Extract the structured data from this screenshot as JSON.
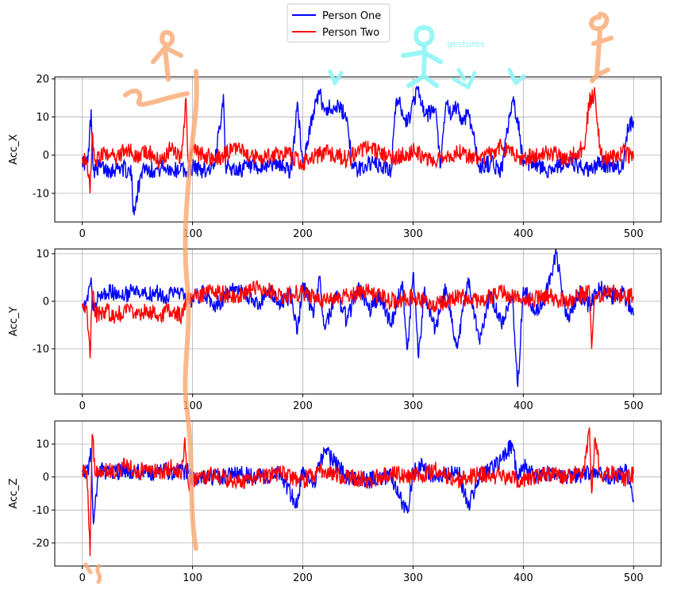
{
  "legend": {
    "placement": "top-center",
    "entries": [
      {
        "label": "Person One",
        "color": "#0000ff"
      },
      {
        "label": "Person Two",
        "color": "#ff0000"
      }
    ]
  },
  "annotation": {
    "text": "gestures",
    "color": "#8ff5f5"
  },
  "chart_data": [
    {
      "type": "line",
      "ylabel": "Acc_X",
      "xlim": [
        -25,
        525
      ],
      "ylim": [
        -17.5,
        20.5
      ],
      "xticks": [
        0,
        100,
        200,
        300,
        400,
        500
      ],
      "yticks": [
        -10,
        0,
        10,
        20
      ],
      "grid": true,
      "series": [
        {
          "name": "Person One",
          "color": "#0000ff",
          "x": [
            0,
            5,
            8,
            10,
            15,
            25,
            35,
            45,
            46,
            55,
            65,
            75,
            85,
            90,
            95,
            100,
            110,
            120,
            128,
            130,
            140,
            150,
            160,
            170,
            180,
            190,
            195,
            200,
            210,
            215,
            220,
            230,
            240,
            245,
            250,
            260,
            270,
            280,
            285,
            290,
            295,
            300,
            305,
            310,
            320,
            325,
            330,
            335,
            340,
            345,
            350,
            360,
            370,
            380,
            390,
            395,
            400,
            410,
            420,
            430,
            440,
            450,
            460,
            470,
            480,
            490,
            495,
            500
          ],
          "y": [
            -2,
            -2,
            12,
            -4,
            -3,
            -4,
            -3,
            -5,
            -15,
            -3,
            -4,
            -3,
            -4,
            -3,
            -5,
            -3,
            -4,
            -3,
            16,
            -3,
            -4,
            -3,
            -4,
            -2,
            -3,
            -4,
            14,
            -3,
            12,
            16,
            12,
            13,
            10,
            -3,
            -4,
            -2,
            -3,
            -4,
            15,
            12,
            8,
            14,
            18,
            10,
            12,
            -3,
            14,
            10,
            13,
            8,
            12,
            -3,
            -2,
            -4,
            14,
            10,
            -3,
            -2,
            -4,
            -3,
            -2,
            -3,
            -4,
            -2,
            -3,
            -3,
            7,
            9
          ]
        },
        {
          "name": "Person Two",
          "color": "#ff0000",
          "x": [
            0,
            4,
            7,
            9,
            12,
            20,
            30,
            40,
            50,
            60,
            70,
            80,
            90,
            94,
            96,
            100,
            120,
            140,
            160,
            180,
            200,
            220,
            240,
            260,
            280,
            300,
            320,
            340,
            360,
            380,
            400,
            420,
            440,
            455,
            460,
            465,
            470,
            480,
            490,
            500
          ],
          "y": [
            -0.5,
            -1,
            -10,
            6,
            -2,
            1,
            -1,
            2,
            -1,
            1,
            -2,
            2,
            -1,
            15,
            -2,
            1,
            -1,
            2,
            -1,
            1,
            -2,
            1,
            -1,
            2,
            -1,
            1,
            -2,
            1,
            -1,
            2,
            -1,
            1,
            -1,
            2,
            14,
            16,
            0,
            -1,
            1,
            -1
          ]
        }
      ]
    },
    {
      "type": "line",
      "ylabel": "Acc_Y",
      "xlim": [
        -25,
        525
      ],
      "ylim": [
        -19.5,
        11
      ],
      "xticks": [
        0,
        100,
        200,
        300,
        400,
        500
      ],
      "yticks": [
        -10,
        0,
        10
      ],
      "grid": true,
      "series": [
        {
          "name": "Person One",
          "color": "#0000ff",
          "x": [
            0,
            5,
            8,
            10,
            15,
            25,
            35,
            45,
            55,
            65,
            75,
            85,
            95,
            100,
            110,
            120,
            130,
            140,
            150,
            160,
            170,
            180,
            190,
            195,
            200,
            210,
            215,
            220,
            230,
            240,
            250,
            260,
            270,
            280,
            290,
            295,
            300,
            305,
            310,
            320,
            330,
            340,
            350,
            360,
            370,
            380,
            390,
            395,
            400,
            410,
            420,
            430,
            440,
            450,
            460,
            470,
            480,
            490,
            500
          ],
          "y": [
            -0.5,
            0,
            5,
            -2,
            1,
            2,
            1,
            2,
            1,
            2,
            1,
            2,
            1,
            0,
            2,
            -1,
            1,
            3,
            1,
            -1,
            2,
            0,
            1,
            -7,
            4,
            -3,
            5,
            -6,
            2,
            -4,
            3,
            -2,
            1,
            -5,
            4,
            -10,
            6,
            -12,
            2,
            -6,
            3,
            -10,
            5,
            -8,
            2,
            -5,
            1,
            -18,
            3,
            -2,
            1,
            10,
            -4,
            2,
            -1,
            3,
            1,
            2,
            -3
          ]
        },
        {
          "name": "Person Two",
          "color": "#ff0000",
          "x": [
            0,
            4,
            7,
            9,
            12,
            20,
            30,
            40,
            50,
            60,
            70,
            80,
            90,
            96,
            100,
            120,
            140,
            160,
            180,
            200,
            220,
            240,
            260,
            280,
            300,
            320,
            340,
            360,
            380,
            400,
            420,
            440,
            460,
            462,
            465,
            480,
            490,
            500
          ],
          "y": [
            -0.5,
            -1,
            -12,
            2,
            -3,
            -2,
            -3,
            -2,
            -3,
            -2,
            -3,
            -2,
            -3,
            0,
            1,
            2,
            1,
            3,
            1,
            2,
            0,
            1,
            2,
            0,
            1,
            -1,
            1,
            0,
            2,
            0,
            1,
            0,
            2,
            -10,
            1,
            2,
            1,
            1
          ]
        }
      ]
    },
    {
      "type": "line",
      "ylabel": "Acc_Z",
      "xlim": [
        -25,
        525
      ],
      "ylim": [
        -27,
        17
      ],
      "xticks": [
        0,
        100,
        200,
        300,
        400,
        500
      ],
      "yticks": [
        -20,
        -10,
        0,
        10
      ],
      "grid": true,
      "series": [
        {
          "name": "Person One",
          "color": "#0000ff",
          "x": [
            0,
            5,
            8,
            10,
            15,
            25,
            35,
            45,
            55,
            65,
            75,
            85,
            95,
            100,
            120,
            140,
            160,
            180,
            195,
            200,
            210,
            220,
            240,
            260,
            280,
            295,
            300,
            310,
            320,
            340,
            350,
            360,
            380,
            390,
            395,
            400,
            410,
            420,
            440,
            460,
            480,
            495,
            500
          ],
          "y": [
            2,
            2,
            8,
            -14,
            2,
            1,
            2,
            1,
            2,
            1,
            2,
            1,
            2,
            -1,
            0,
            1,
            0,
            1,
            -9,
            3,
            -2,
            8,
            0,
            -1,
            0,
            -11,
            2,
            4,
            -1,
            3,
            -9,
            0,
            5,
            10,
            -1,
            4,
            0,
            1,
            0,
            1,
            0,
            2,
            -7
          ]
        },
        {
          "name": "Person Two",
          "color": "#ff0000",
          "x": [
            0,
            4,
            7,
            9,
            12,
            20,
            30,
            40,
            50,
            60,
            70,
            80,
            90,
            93,
            96,
            100,
            120,
            140,
            160,
            180,
            200,
            220,
            240,
            260,
            280,
            300,
            320,
            340,
            360,
            380,
            400,
            420,
            440,
            455,
            460,
            462,
            465,
            470,
            480,
            490,
            500
          ],
          "y": [
            1,
            2,
            -24,
            13,
            1,
            3,
            1,
            4,
            1,
            3,
            1,
            3,
            1,
            12,
            -2,
            -1,
            1,
            -2,
            0,
            1,
            -1,
            2,
            0,
            -1,
            1,
            0,
            2,
            -1,
            1,
            0,
            -1,
            1,
            0,
            2,
            15,
            -5,
            12,
            0,
            1,
            -1,
            1
          ]
        }
      ]
    }
  ]
}
